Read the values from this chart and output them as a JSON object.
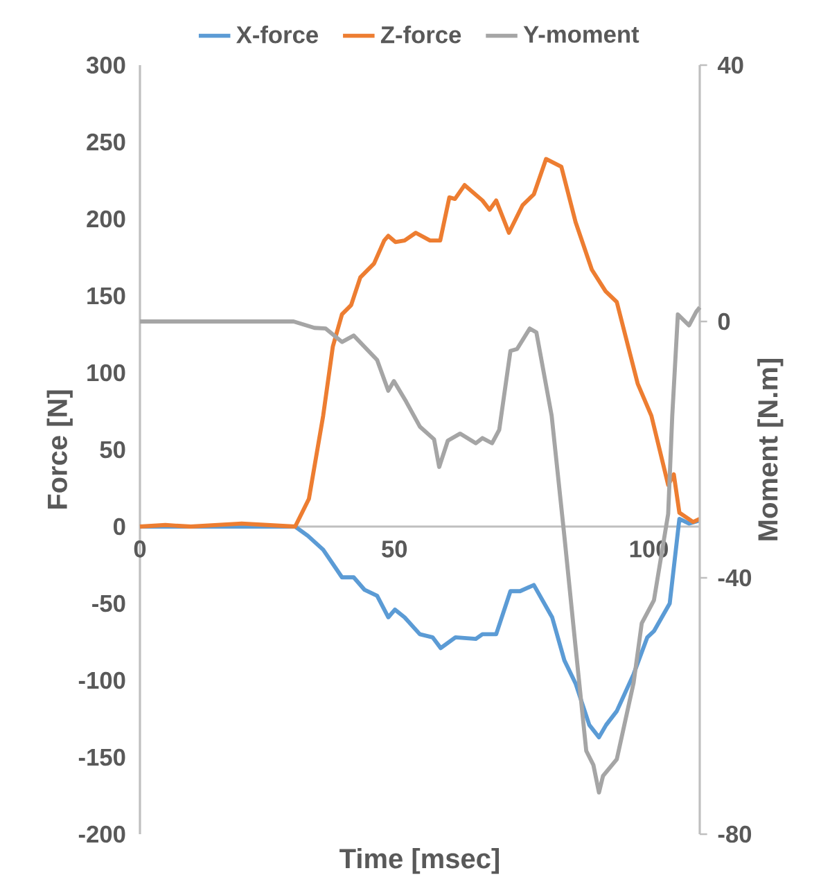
{
  "chart_data": {
    "type": "line",
    "xlabel": "Time [msec]",
    "ylabel": "Force [N]",
    "y2label": "Moment [N.m]",
    "legend": "top",
    "xlim": [
      0,
      110
    ],
    "xticks": [
      0,
      50,
      100
    ],
    "ylim": [
      -200,
      300
    ],
    "yticks": [
      -200,
      -150,
      -100,
      -50,
      0,
      50,
      100,
      150,
      200,
      250,
      300
    ],
    "y2lim": [
      -80,
      40
    ],
    "y2ticks": [
      -80,
      -40,
      0,
      40
    ],
    "series": [
      {
        "name": "X-force",
        "color": "#5b9bd5",
        "x": [
          0,
          10,
          20,
          30.5,
          33,
          36,
          39.7,
          42,
          44.1,
          46.6,
          48.8,
          50.1,
          52,
          55,
          57.5,
          59.1,
          62,
          66,
          67.3,
          70,
          72.8,
          74.7,
          77.4,
          81,
          83.4,
          85.6,
          88.3,
          90.2,
          91.6,
          93.7,
          97,
          99.7,
          101,
          104.1,
          106,
          107.9,
          110
        ],
        "values": [
          0,
          0,
          0,
          0,
          -6,
          -15,
          -33,
          -33,
          -41,
          -45,
          -59,
          -54,
          -59,
          -70,
          -72,
          -79,
          -72,
          -73,
          -70,
          -70,
          -42,
          -42,
          -38,
          -59,
          -87,
          -102,
          -129,
          -137,
          -129,
          -120,
          -96,
          -72,
          -68,
          -50,
          5,
          2,
          4
        ]
      },
      {
        "name": "Z-force",
        "color": "#ed7d31",
        "x": [
          0,
          5,
          10,
          20,
          25,
          30.5,
          33.2,
          36,
          37.9,
          39.7,
          41.5,
          43.3,
          46,
          48,
          48.8,
          50.2,
          52,
          54.2,
          57,
          59,
          60.8,
          61.9,
          63.8,
          67.3,
          68.7,
          70,
          72.5,
          75.2,
          77.4,
          79.8,
          82.8,
          85.6,
          88.8,
          91.5,
          93.7,
          97.8,
          100.5,
          103.8,
          104.9,
          106,
          108.7,
          110
        ],
        "values": [
          0,
          1,
          0,
          2,
          1,
          0,
          18,
          72,
          117,
          138,
          144,
          162,
          171,
          186,
          189,
          185,
          186,
          191,
          186,
          186,
          214,
          213,
          222,
          212,
          206,
          212,
          191,
          209,
          216,
          239,
          234,
          198,
          167,
          153,
          146,
          93,
          72,
          27,
          34,
          9,
          3,
          5
        ]
      },
      {
        "name": "Y-moment",
        "color": "#a5a5a5",
        "axis": "y2",
        "x": [
          0,
          10,
          20,
          30.2,
          34.3,
          36.5,
          39.7,
          42,
          46.6,
          48.8,
          49.9,
          52.3,
          55,
          57.8,
          58.8,
          60.5,
          62.9,
          66,
          67.3,
          69.2,
          70.6,
          72.8,
          74.1,
          76.6,
          77.9,
          80.9,
          83.4,
          85.6,
          87.7,
          89.1,
          90.2,
          91,
          93.7,
          97,
          98.6,
          101,
          103.8,
          104.6,
          105.7,
          107.9,
          109.3,
          110
        ],
        "values": [
          0,
          0,
          0,
          0,
          -1,
          -1.1,
          -3.2,
          -2.2,
          -6,
          -10.8,
          -9.3,
          -12.5,
          -16.4,
          -18.4,
          -22.7,
          -18.6,
          -17.5,
          -19,
          -18.2,
          -19,
          -16.9,
          -4.6,
          -4.3,
          -1.1,
          -1.7,
          -14.7,
          -33.5,
          -50.8,
          -67,
          -69.2,
          -73.5,
          -70.9,
          -68.3,
          -56.4,
          -47.1,
          -43.5,
          -30,
          -14.7,
          1.1,
          -0.6,
          1.5,
          2.2
        ]
      }
    ]
  }
}
